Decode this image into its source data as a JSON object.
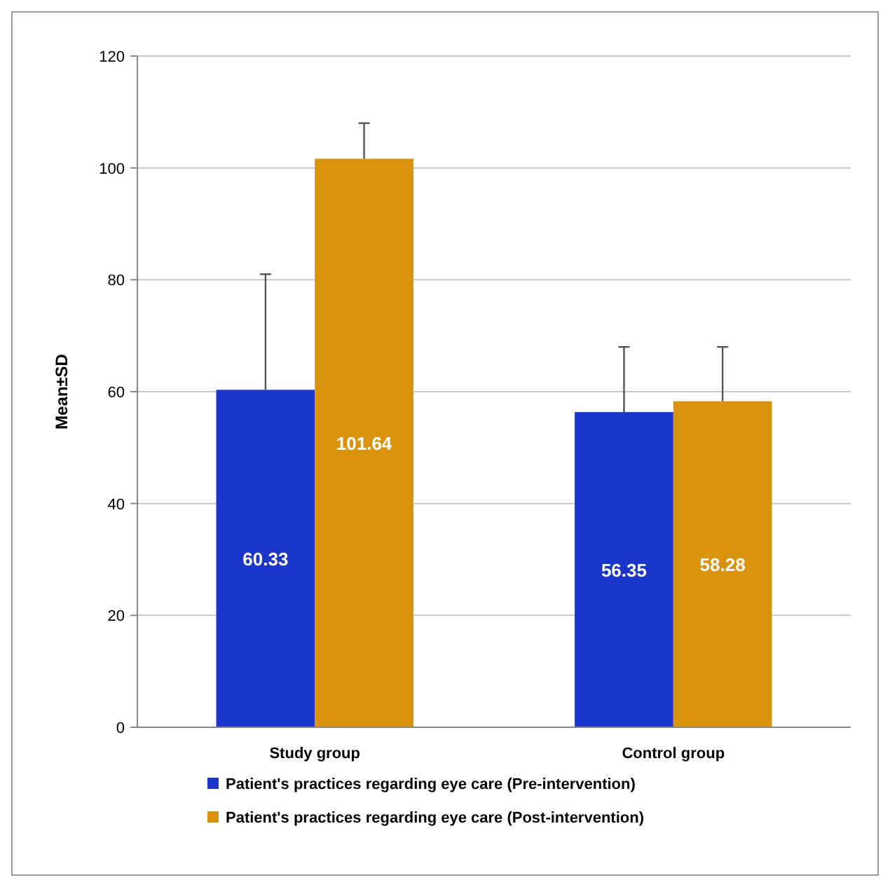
{
  "chart_data": {
    "type": "bar",
    "ylabel": "Mean±SD",
    "categories": [
      "Study group",
      "Control group"
    ],
    "series": [
      {
        "name": "Patient's practices regarding eye care (Pre-intervention)",
        "color": "#1a35c8",
        "values": [
          60.33,
          56.35
        ],
        "errors": [
          [
            60.33,
            81
          ],
          [
            56.35,
            68
          ]
        ]
      },
      {
        "name": "Patient's practices regarding eye care (Post-intervention)",
        "color": "#d9920c",
        "values": [
          101.64,
          58.28
        ],
        "errors": [
          [
            101.64,
            108
          ],
          [
            58.28,
            68
          ]
        ]
      }
    ],
    "ylim": [
      0,
      120
    ],
    "yticks": [
      0,
      20,
      40,
      60,
      80,
      100,
      120
    ],
    "grid": "y",
    "legend": "bottom",
    "data_labels": true
  }
}
